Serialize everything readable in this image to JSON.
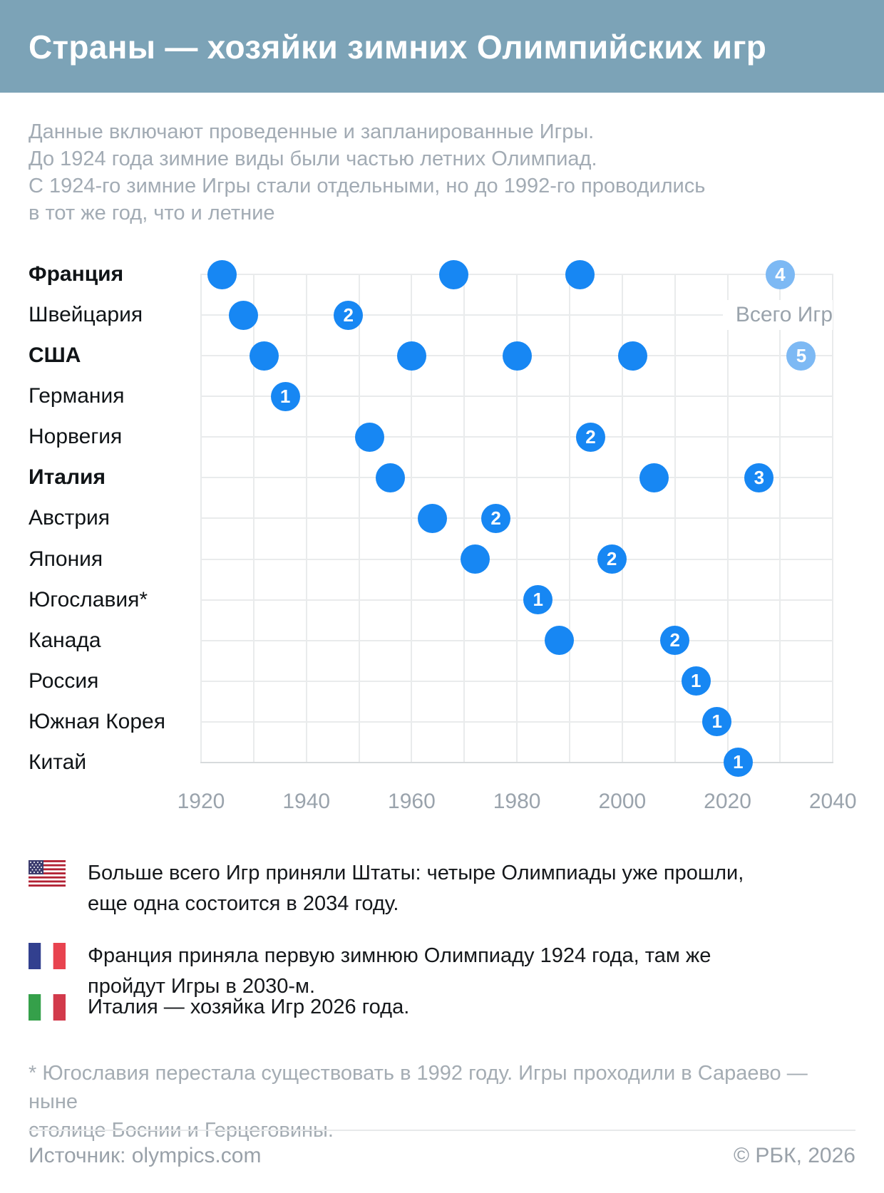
{
  "header": {
    "title": "Страны — хозяйки зимних Олимпийских игр",
    "background_color": "#7ca3b7"
  },
  "subtitle": "Данные включают проведенные и запланированные Игры.\nДо 1924 года зимние виды были частью летних Олимпиад.\nС 1924-го зимние Игры стали отдельными, но до 1992-го проводились\nв тот же год, что и летние",
  "chart_data": {
    "type": "scatter",
    "title": "Страны — хозяйки зимних Олимпийских игр",
    "legend_label": "Всего Игр",
    "xlabel": "",
    "ylabel": "",
    "x_axis": {
      "min": 1920,
      "max": 2040,
      "grid_step": 10,
      "ticks": [
        1920,
        1940,
        1960,
        1980,
        2000,
        2020,
        2040
      ]
    },
    "grid": true,
    "colors": {
      "dot": "#1787f3",
      "dot_future": "#7db9f4",
      "grid": "#e9ebec",
      "axis_line": "#d7dadc"
    },
    "rows": [
      {
        "country": "Франция",
        "bold": true,
        "games": [
          {
            "year": 1924
          },
          {
            "year": 1968
          },
          {
            "year": 1992
          },
          {
            "year": 2030,
            "total": 4,
            "future": true
          }
        ]
      },
      {
        "country": "Швейцария",
        "bold": false,
        "games": [
          {
            "year": 1928
          },
          {
            "year": 1948,
            "total": 2
          }
        ]
      },
      {
        "country": "США",
        "bold": true,
        "games": [
          {
            "year": 1932
          },
          {
            "year": 1960
          },
          {
            "year": 1980
          },
          {
            "year": 2002
          },
          {
            "year": 2034,
            "total": 5,
            "future": true
          }
        ]
      },
      {
        "country": "Германия",
        "bold": false,
        "games": [
          {
            "year": 1936,
            "total": 1
          }
        ]
      },
      {
        "country": "Норвегия",
        "bold": false,
        "games": [
          {
            "year": 1952
          },
          {
            "year": 1994,
            "total": 2
          }
        ]
      },
      {
        "country": "Италия",
        "bold": true,
        "games": [
          {
            "year": 1956
          },
          {
            "year": 2006
          },
          {
            "year": 2026,
            "total": 3
          }
        ]
      },
      {
        "country": "Австрия",
        "bold": false,
        "games": [
          {
            "year": 1964
          },
          {
            "year": 1976,
            "total": 2
          }
        ]
      },
      {
        "country": "Япония",
        "bold": false,
        "games": [
          {
            "year": 1972
          },
          {
            "year": 1998,
            "total": 2
          }
        ]
      },
      {
        "country": "Югославия*",
        "bold": false,
        "games": [
          {
            "year": 1984,
            "total": 1
          }
        ]
      },
      {
        "country": "Канада",
        "bold": false,
        "games": [
          {
            "year": 1988
          },
          {
            "year": 2010,
            "total": 2
          }
        ]
      },
      {
        "country": "Россия",
        "bold": false,
        "games": [
          {
            "year": 2014,
            "total": 1
          }
        ]
      },
      {
        "country": "Южная Корея",
        "bold": false,
        "games": [
          {
            "year": 2018,
            "total": 1
          }
        ]
      },
      {
        "country": "Китай",
        "bold": false,
        "games": [
          {
            "year": 2022,
            "total": 1
          }
        ]
      }
    ]
  },
  "annotations": [
    {
      "flag": "usa",
      "text": "Больше всего Игр приняли Штаты: четыре Олимпиады уже прошли,\nеще одна состоится в 2034 году."
    },
    {
      "flag": "france",
      "text": "Франция приняла первую зимнюю Олимпиаду 1924 года, там же\nпройдут Игры в 2030-м."
    },
    {
      "flag": "italy",
      "text": "Италия — хозяйка Игр 2026 года."
    }
  ],
  "footnote": "* Югославия перестала существовать в 1992 году. Игры проходили в Сараево — ныне\nстолице Боснии и Герцеговины.",
  "footer": {
    "source": "Источник: olympics.com",
    "copyright": "© РБК, 2026"
  }
}
